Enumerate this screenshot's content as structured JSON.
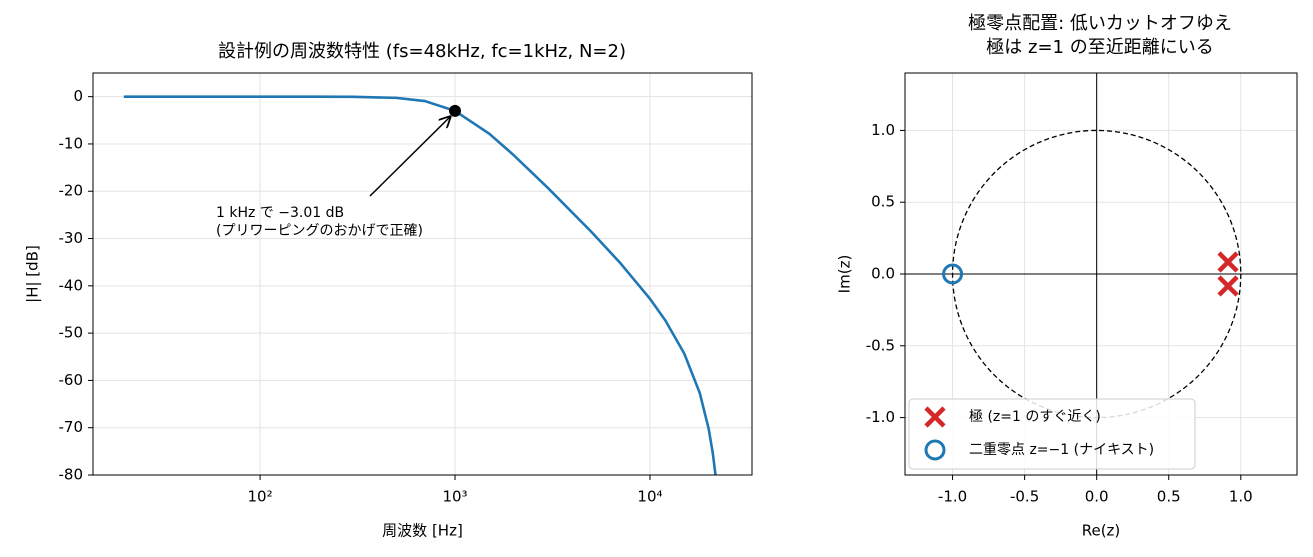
{
  "chart_data": [
    {
      "type": "line",
      "title": [
        "設計例の周波数特性 (fs=48kHz, fc=1kHz, N=2)"
      ],
      "xlabel": "周波数 [Hz]",
      "ylabel": "|H| [dB]",
      "xscale": "log",
      "xlim": [
        13.9,
        33370
      ],
      "ylim": [
        -80,
        5
      ],
      "xticks": [
        {
          "value": 100,
          "label": "10²"
        },
        {
          "value": 1000,
          "label": "10³"
        },
        {
          "value": 10000,
          "label": "10⁴"
        }
      ],
      "yticks": [
        0,
        -10,
        -20,
        -30,
        -40,
        -50,
        -60,
        -70,
        -80
      ],
      "grid": true,
      "x": [
        20,
        50,
        100,
        200,
        300,
        500,
        700,
        1000,
        1500,
        2000,
        3000,
        5000,
        7000,
        10000,
        12000,
        15000,
        18000,
        20000,
        21000,
        21500,
        21700
      ],
      "series": [
        {
          "color": "#1f77b4",
          "values": [
            0,
            0,
            0,
            -0.007,
            -0.035,
            -0.262,
            -0.933,
            -3.01,
            -7.85,
            -12.37,
            -19.34,
            -28.57,
            -35.06,
            -42.74,
            -47.34,
            -54.34,
            -62.65,
            -70.22,
            -75.39,
            -78.77,
            -80.12
          ]
        }
      ],
      "point": {
        "x": 1000,
        "y": -3.01,
        "color": "#000000"
      },
      "annotation": [
        "1 kHz で −3.01 dB",
        "(プリワーピングのおかげで正確)"
      ]
    },
    {
      "type": "scatter",
      "title": [
        "極零点配置: 低いカットオフゆえ",
        "極は z=1 の至近距離にいる"
      ],
      "xlabel": "Re(z)",
      "ylabel": "Im(z)",
      "xlim": [
        -1.33,
        1.39
      ],
      "ylim": [
        -1.4,
        1.4
      ],
      "xticks": [
        {
          "value": -1,
          "label": "-1.0"
        },
        -0.5,
        {
          "value": 0,
          "label": "0.0"
        },
        0.5,
        {
          "value": 1,
          "label": "1.0"
        }
      ],
      "yticks": [
        {
          "value": -1,
          "label": "-1.0"
        },
        -0.5,
        {
          "value": 0,
          "label": "0.0"
        },
        0.5,
        {
          "value": 1,
          "label": "1.0"
        }
      ],
      "grid": true,
      "unit_circle": true,
      "zero_lines": true,
      "legend": "lower left",
      "series": [
        {
          "name": "極 (z=1 のすぐ近く)",
          "color": "#d62728",
          "marker": "x",
          "x": [
            0.9115,
            0.9115
          ],
          "values": [
            0.0835,
            -0.0835
          ]
        },
        {
          "name": "二重零点 z=−1 (ナイキスト)",
          "color": "#1f77b4",
          "marker": "o",
          "x": [
            -1
          ],
          "values": [
            0
          ]
        }
      ]
    }
  ]
}
